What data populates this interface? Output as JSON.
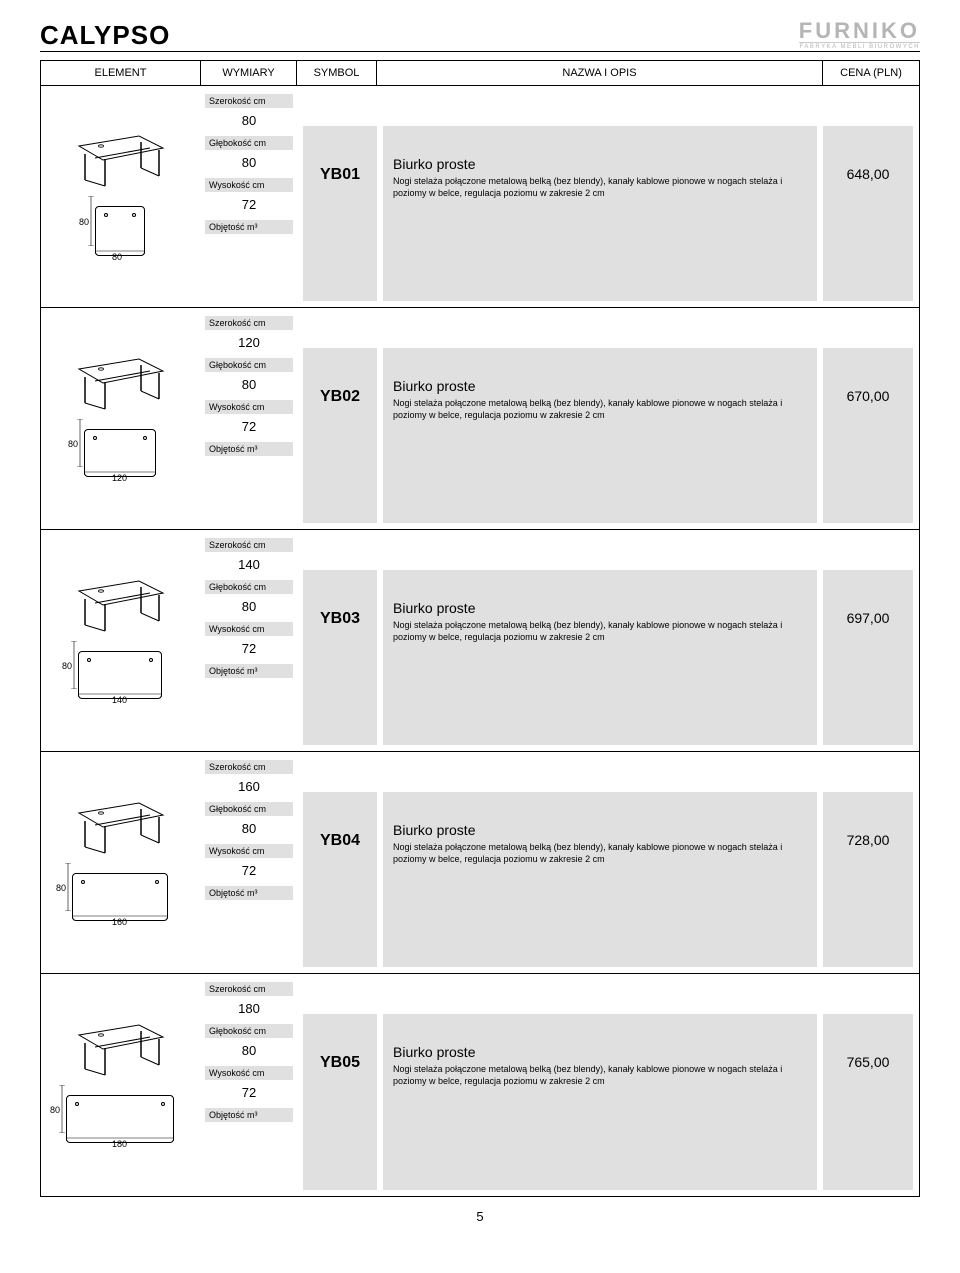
{
  "page": {
    "collection": "CALYPSO",
    "brand": "FURNIKO",
    "brand_sub": "FABRYKA MEBLI BIUROWYCH",
    "page_number": "5"
  },
  "headers": {
    "element": "ELEMENT",
    "wymiary": "WYMIARY",
    "symbol": "SYMBOL",
    "nazwa": "NAZWA I OPIS",
    "cena": "CENA (PLN)"
  },
  "labels": {
    "szerokosc": "Szerokość cm",
    "glebokosc": "Głębokość cm",
    "wysokosc": "Wysokość cm",
    "objetosc": "Objętość m³"
  },
  "common_desc": {
    "title": "Biurko proste",
    "text": "Nogi stelaża połączone metalową belką (bez blendy), kanały kablowe pionowe w nogach stelaża i poziomy w belce, regulacja poziomu w zakresie 2 cm"
  },
  "products": [
    {
      "symbol": "YB01",
      "width": "80",
      "depth": "80",
      "height": "72",
      "price": "648,00",
      "plan_w": 50,
      "plan_h": 50
    },
    {
      "symbol": "YB02",
      "width": "120",
      "depth": "80",
      "height": "72",
      "price": "670,00",
      "plan_w": 72,
      "plan_h": 48
    },
    {
      "symbol": "YB03",
      "width": "140",
      "depth": "80",
      "height": "72",
      "price": "697,00",
      "plan_w": 84,
      "plan_h": 48
    },
    {
      "symbol": "YB04",
      "width": "160",
      "depth": "80",
      "height": "72",
      "price": "728,00",
      "plan_w": 96,
      "plan_h": 48
    },
    {
      "symbol": "YB05",
      "width": "180",
      "depth": "80",
      "height": "72",
      "price": "765,00",
      "plan_w": 108,
      "plan_h": 48
    }
  ],
  "style": {
    "gray": "#e0e0e0",
    "text": "#000000",
    "brand_gray": "#b5b5b5"
  }
}
